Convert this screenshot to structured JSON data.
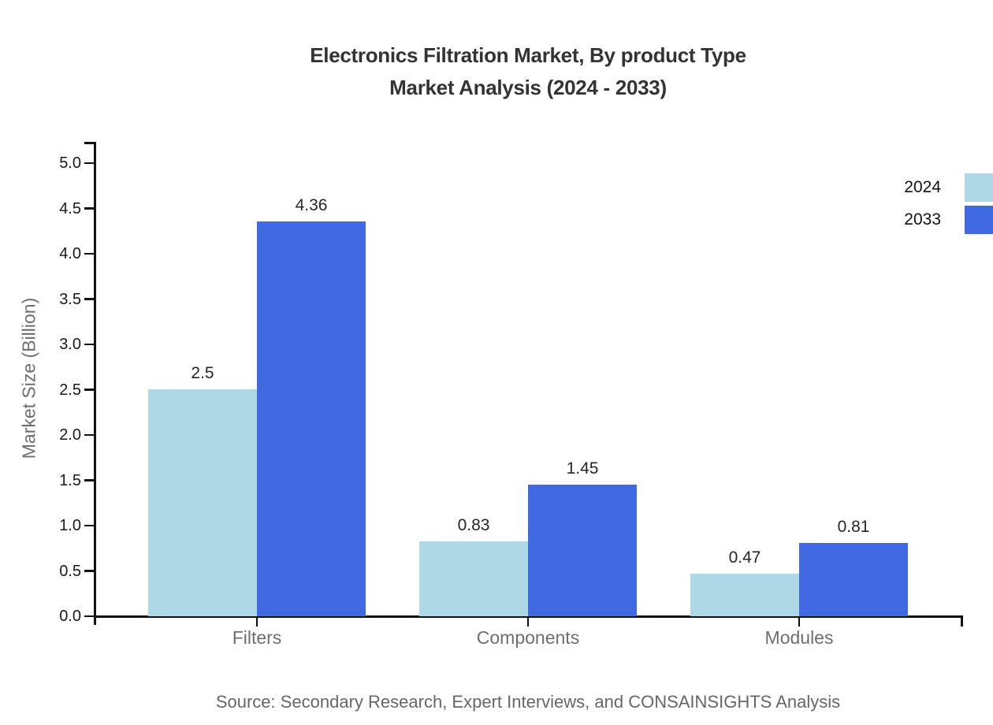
{
  "title": {
    "line1": "Electronics Filtration Market, By product Type",
    "line2": "Market Analysis (2024 - 2033)"
  },
  "source": "Source: Secondary Research, Expert Interviews, and CONSAINSIGHTS Analysis",
  "chart_data": {
    "type": "bar",
    "title": "Electronics Filtration Market, By product Type Market Analysis (2024 - 2033)",
    "categories": [
      "Filters",
      "Components",
      "Modules"
    ],
    "series": [
      {
        "name": "2024",
        "color": "#ADD8E6",
        "values": [
          2.5,
          0.83,
          0.47
        ]
      },
      {
        "name": "2033",
        "color": "#4169E1",
        "values": [
          4.36,
          1.45,
          0.81
        ]
      }
    ],
    "xlabel": "",
    "ylabel": "Market Size (Billion)",
    "ylim": [
      0,
      5.25
    ],
    "yticks": [
      0.0,
      0.5,
      1.0,
      1.5,
      2.0,
      2.5,
      3.0,
      3.5,
      4.0,
      4.5,
      5.0
    ],
    "ytick_format_decimals": 1,
    "grid": false,
    "bar_labels": true,
    "legend_position": "top-right",
    "axis_color": "#111111",
    "tick_text_color": "#1a1a1a",
    "muted_text_color": "#6e6e6e",
    "bar_label_color": "#262626"
  }
}
